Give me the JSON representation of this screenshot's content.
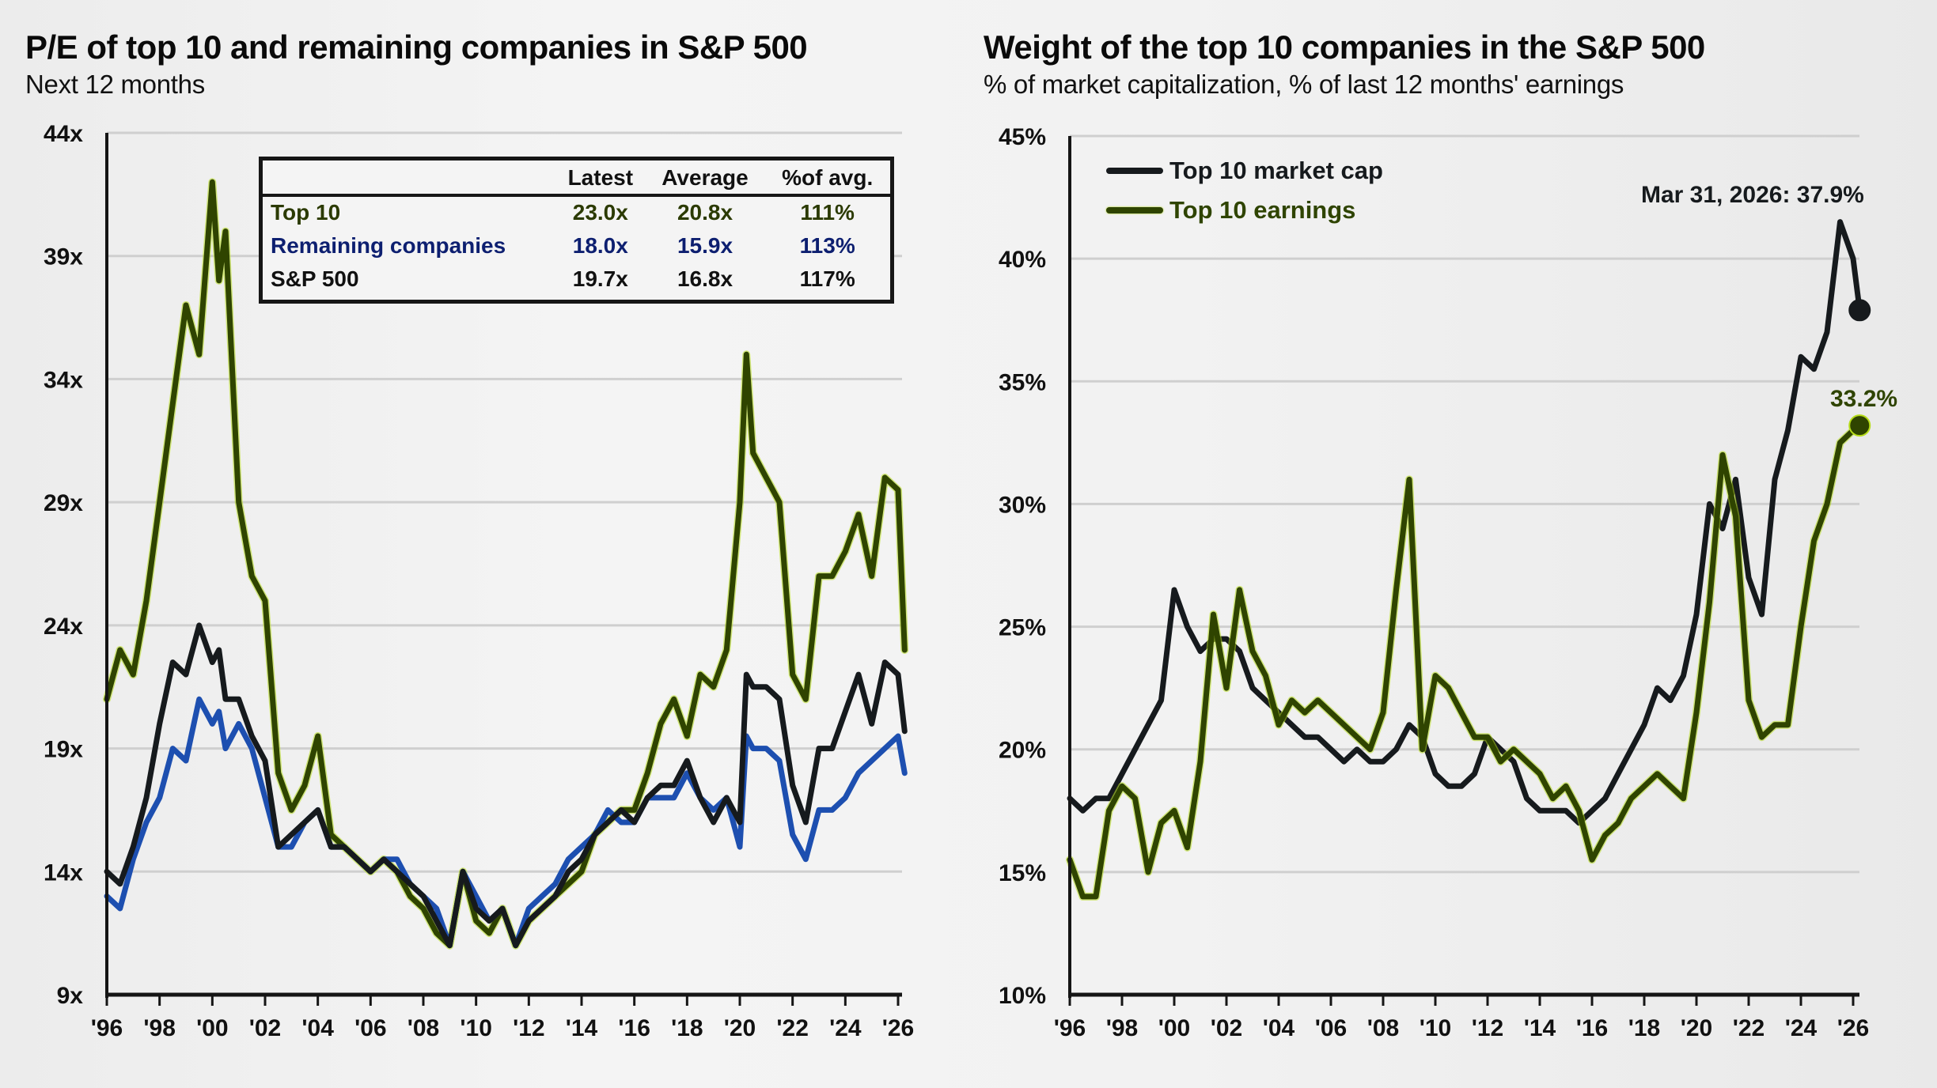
{
  "left": {
    "title": "P/E of top 10 and remaining companies in S&P 500",
    "subtitle": "Next 12 months",
    "table": {
      "headers": [
        "",
        "Latest",
        "Average",
        "%of avg."
      ],
      "rows": [
        {
          "name": "Top 10",
          "latest": "23.0x",
          "average": "20.8x",
          "pct": "111%",
          "color": "#2b3a00"
        },
        {
          "name": "Remaining companies",
          "latest": "18.0x",
          "average": "15.9x",
          "pct": "113%",
          "color": "#0d1f70"
        },
        {
          "name": "S&P 500",
          "latest": "19.7x",
          "average": "16.8x",
          "pct": "117%",
          "color": "#111111"
        }
      ]
    }
  },
  "right": {
    "title": "Weight of the top 10 companies in the S&P 500",
    "subtitle": "% of market capitalization, % of last 12 months' earnings",
    "legend": [
      {
        "label": "Top 10 market cap",
        "color": "#161a1d"
      },
      {
        "label": "Top 10 earnings",
        "color": "#2f4400"
      }
    ],
    "annotations": {
      "market_cap": "Mar 31, 2026: 37.9%",
      "earnings": "33.2%"
    }
  },
  "chart_data": [
    {
      "type": "line",
      "title": "P/E of top 10 and remaining companies in S&P 500",
      "subtitle": "Next 12 months",
      "xlabel": "",
      "ylabel": "",
      "xlim": [
        1996,
        2026.25
      ],
      "ylim": [
        9,
        44
      ],
      "yticks": [
        9,
        14,
        19,
        24,
        29,
        34,
        39,
        44
      ],
      "ytick_labels": [
        "9x",
        "14x",
        "19x",
        "24x",
        "29x",
        "34x",
        "39x",
        "44x"
      ],
      "xticks": [
        1996,
        1998,
        2000,
        2002,
        2004,
        2006,
        2008,
        2010,
        2012,
        2014,
        2016,
        2018,
        2020,
        2022,
        2024,
        2026
      ],
      "xtick_labels": [
        "'96",
        "'98",
        "'00",
        "'02",
        "'04",
        "'06",
        "'08",
        "'10",
        "'12",
        "'14",
        "'16",
        "'18",
        "'20",
        "'22",
        "'24",
        "'26"
      ],
      "grid": true,
      "x": [
        1996.0,
        1996.5,
        1997.0,
        1997.5,
        1998.0,
        1998.5,
        1999.0,
        1999.5,
        2000.0,
        2000.25,
        2000.5,
        2001.0,
        2001.5,
        2002.0,
        2002.5,
        2003.0,
        2003.5,
        2004.0,
        2004.5,
        2005.0,
        2005.5,
        2006.0,
        2006.5,
        2007.0,
        2007.5,
        2008.0,
        2008.5,
        2009.0,
        2009.5,
        2010.0,
        2010.5,
        2011.0,
        2011.5,
        2012.0,
        2012.5,
        2013.0,
        2013.5,
        2014.0,
        2014.5,
        2015.0,
        2015.5,
        2016.0,
        2016.5,
        2017.0,
        2017.5,
        2018.0,
        2018.5,
        2019.0,
        2019.5,
        2020.0,
        2020.25,
        2020.5,
        2021.0,
        2021.5,
        2022.0,
        2022.5,
        2023.0,
        2023.5,
        2024.0,
        2024.5,
        2025.0,
        2025.5,
        2026.0,
        2026.25
      ],
      "series": [
        {
          "name": "Top 10",
          "color": "#2f4400",
          "values": [
            21.0,
            23.0,
            22.0,
            25.0,
            29.0,
            33.0,
            37.0,
            35.0,
            42.0,
            38.0,
            40.0,
            29.0,
            26.0,
            25.0,
            18.0,
            16.5,
            17.5,
            19.5,
            15.5,
            15.0,
            14.5,
            14.0,
            14.5,
            14.0,
            13.0,
            12.5,
            11.5,
            11.0,
            14.0,
            12.0,
            11.5,
            12.5,
            11.0,
            12.0,
            12.5,
            13.0,
            13.5,
            14.0,
            15.5,
            16.0,
            16.5,
            16.5,
            18.0,
            20.0,
            21.0,
            19.5,
            22.0,
            21.5,
            23.0,
            29.0,
            35.0,
            31.0,
            30.0,
            29.0,
            22.0,
            21.0,
            26.0,
            26.0,
            27.0,
            28.5,
            26.0,
            30.0,
            29.5,
            23.0
          ]
        },
        {
          "name": "Remaining companies",
          "color": "#1d4fb0",
          "values": [
            13.0,
            12.5,
            14.5,
            16.0,
            17.0,
            19.0,
            18.5,
            21.0,
            20.0,
            20.5,
            19.0,
            20.0,
            19.0,
            17.0,
            15.0,
            15.0,
            16.0,
            16.5,
            15.0,
            15.0,
            14.5,
            14.0,
            14.5,
            14.5,
            13.5,
            13.0,
            12.5,
            11.0,
            14.0,
            13.0,
            12.0,
            12.5,
            11.0,
            12.5,
            13.0,
            13.5,
            14.5,
            15.0,
            15.5,
            16.5,
            16.0,
            16.0,
            17.0,
            17.0,
            17.0,
            18.0,
            17.0,
            16.5,
            17.0,
            15.0,
            19.5,
            19.0,
            19.0,
            18.5,
            15.5,
            14.5,
            16.5,
            16.5,
            17.0,
            18.0,
            18.5,
            19.0,
            19.5,
            18.0
          ]
        },
        {
          "name": "S&P 500",
          "color": "#161a1d",
          "values": [
            14.0,
            13.5,
            15.0,
            17.0,
            20.0,
            22.5,
            22.0,
            24.0,
            22.5,
            23.0,
            21.0,
            21.0,
            19.5,
            18.5,
            15.0,
            15.5,
            16.0,
            16.5,
            15.0,
            15.0,
            14.5,
            14.0,
            14.5,
            14.0,
            13.5,
            13.0,
            12.0,
            11.0,
            14.0,
            12.5,
            12.0,
            12.5,
            11.0,
            12.0,
            12.5,
            13.0,
            14.0,
            14.5,
            15.5,
            16.0,
            16.5,
            16.0,
            17.0,
            17.5,
            17.5,
            18.5,
            17.0,
            16.0,
            17.0,
            16.0,
            22.0,
            21.5,
            21.5,
            21.0,
            17.5,
            16.0,
            19.0,
            19.0,
            20.5,
            22.0,
            20.0,
            22.5,
            22.0,
            19.7
          ]
        }
      ],
      "table": {
        "columns": [
          "",
          "Latest",
          "Average",
          "%of avg."
        ],
        "rows": [
          [
            "Top 10",
            "23.0x",
            "20.8x",
            "111%"
          ],
          [
            "Remaining companies",
            "18.0x",
            "15.9x",
            "113%"
          ],
          [
            "S&P 500",
            "19.7x",
            "16.8x",
            "117%"
          ]
        ]
      }
    },
    {
      "type": "line",
      "title": "Weight of the top 10 companies in the S&P 500",
      "subtitle": "% of market capitalization, % of last 12 months' earnings",
      "xlabel": "",
      "ylabel": "",
      "xlim": [
        1996,
        2026.25
      ],
      "ylim": [
        10,
        45
      ],
      "yticks": [
        10,
        15,
        20,
        25,
        30,
        35,
        40,
        45
      ],
      "ytick_labels": [
        "10%",
        "15%",
        "20%",
        "25%",
        "30%",
        "35%",
        "40%",
        "45%"
      ],
      "xticks": [
        1996,
        1998,
        2000,
        2002,
        2004,
        2006,
        2008,
        2010,
        2012,
        2014,
        2016,
        2018,
        2020,
        2022,
        2024,
        2026
      ],
      "xtick_labels": [
        "'96",
        "'98",
        "'00",
        "'02",
        "'04",
        "'06",
        "'08",
        "'10",
        "'12",
        "'14",
        "'16",
        "'18",
        "'20",
        "'22",
        "'24",
        "'26"
      ],
      "grid": true,
      "legend_position": "top-left",
      "x": [
        1996.0,
        1996.5,
        1997.0,
        1997.5,
        1998.0,
        1998.5,
        1999.0,
        1999.5,
        2000.0,
        2000.5,
        2001.0,
        2001.5,
        2002.0,
        2002.5,
        2003.0,
        2003.5,
        2004.0,
        2004.5,
        2005.0,
        2005.5,
        2006.0,
        2006.5,
        2007.0,
        2007.5,
        2008.0,
        2008.5,
        2009.0,
        2009.5,
        2010.0,
        2010.5,
        2011.0,
        2011.5,
        2012.0,
        2012.5,
        2013.0,
        2013.5,
        2014.0,
        2014.5,
        2015.0,
        2015.5,
        2016.0,
        2016.5,
        2017.0,
        2017.5,
        2018.0,
        2018.5,
        2019.0,
        2019.5,
        2020.0,
        2020.5,
        2021.0,
        2021.5,
        2022.0,
        2022.5,
        2023.0,
        2023.5,
        2024.0,
        2024.5,
        2025.0,
        2025.5,
        2026.0,
        2026.25
      ],
      "series": [
        {
          "name": "Top 10 market cap",
          "color": "#161a1d",
          "values": [
            18.0,
            17.5,
            18.0,
            18.0,
            19.0,
            20.0,
            21.0,
            22.0,
            26.5,
            25.0,
            24.0,
            24.5,
            24.5,
            24.0,
            22.5,
            22.0,
            21.5,
            21.0,
            20.5,
            20.5,
            20.0,
            19.5,
            20.0,
            19.5,
            19.5,
            20.0,
            21.0,
            20.5,
            19.0,
            18.5,
            18.5,
            19.0,
            20.5,
            20.0,
            19.5,
            18.0,
            17.5,
            17.5,
            17.5,
            17.0,
            17.5,
            18.0,
            19.0,
            20.0,
            21.0,
            22.5,
            22.0,
            23.0,
            25.5,
            30.0,
            29.0,
            31.0,
            27.0,
            25.5,
            31.0,
            33.0,
            36.0,
            35.5,
            37.0,
            41.5,
            40.0,
            37.9
          ]
        },
        {
          "name": "Top 10 earnings",
          "color": "#2f4400",
          "values": [
            15.5,
            14.0,
            14.0,
            17.5,
            18.5,
            18.0,
            15.0,
            17.0,
            17.5,
            16.0,
            19.5,
            25.5,
            22.5,
            26.5,
            24.0,
            23.0,
            21.0,
            22.0,
            21.5,
            22.0,
            21.5,
            21.0,
            20.5,
            20.0,
            21.5,
            26.5,
            31.0,
            20.0,
            23.0,
            22.5,
            21.5,
            20.5,
            20.5,
            19.5,
            20.0,
            19.5,
            19.0,
            18.0,
            18.5,
            17.5,
            15.5,
            16.5,
            17.0,
            18.0,
            18.5,
            19.0,
            18.5,
            18.0,
            21.5,
            26.0,
            32.0,
            29.5,
            22.0,
            20.5,
            21.0,
            21.0,
            25.0,
            28.5,
            30.0,
            32.5,
            33.0,
            33.2
          ]
        }
      ],
      "annotations": [
        {
          "text": "Mar 31, 2026: 37.9%",
          "series": "Top 10 market cap",
          "x": 2026.25,
          "y": 37.9
        },
        {
          "text": "33.2%",
          "series": "Top 10 earnings",
          "x": 2026.25,
          "y": 33.2
        }
      ]
    }
  ]
}
